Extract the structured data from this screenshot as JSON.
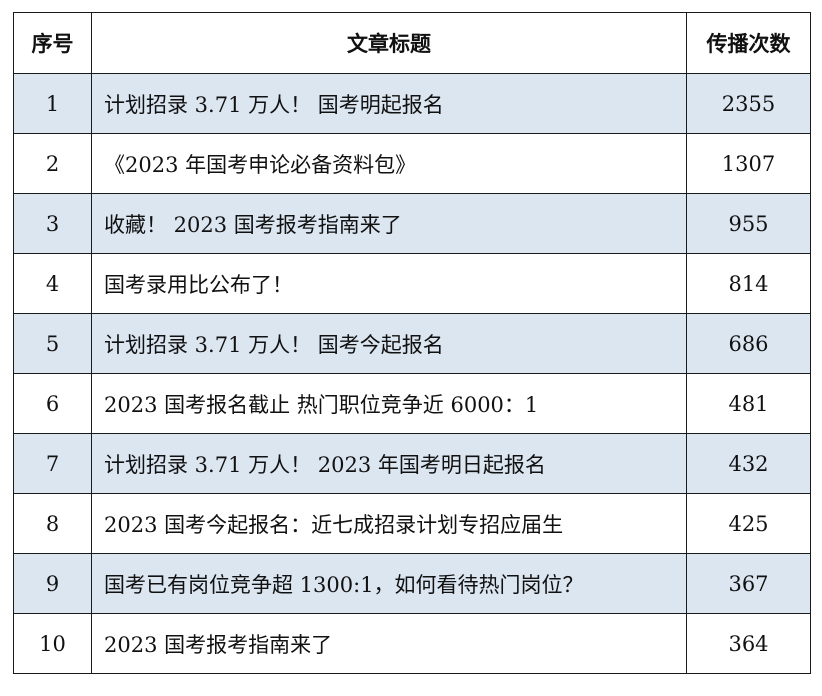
{
  "headers": {
    "index": "序号",
    "title": "文章标题",
    "count": "传播次数"
  },
  "rows": [
    {
      "index": "1",
      "title": "计划招录 3.71 万人！ 国考明起报名",
      "count": "2355"
    },
    {
      "index": "2",
      "title": "《2023 年国考申论必备资料包》",
      "count": "1307"
    },
    {
      "index": "3",
      "title": "收藏！ 2023 国考报考指南来了",
      "count": "955"
    },
    {
      "index": "4",
      "title": "国考录用比公布了！",
      "count": "814"
    },
    {
      "index": "5",
      "title": "计划招录 3.71 万人！ 国考今起报名",
      "count": "686"
    },
    {
      "index": "6",
      "title": "2023 国考报名截止 热门职位竞争近 6000：1",
      "count": "481"
    },
    {
      "index": "7",
      "title": "计划招录 3.71 万人！ 2023 年国考明日起报名",
      "count": "432"
    },
    {
      "index": "8",
      "title": "2023 国考今起报名：近七成招录计划专招应届生",
      "count": "425"
    },
    {
      "index": "9",
      "title": "国考已有岗位竞争超 1300:1，如何看待热门岗位？",
      "count": "367"
    },
    {
      "index": "10",
      "title": "2023 国考报考指南来了",
      "count": "364"
    }
  ],
  "colors": {
    "row_shade": "#dce6f1",
    "row_plain": "#ffffff",
    "border": "#1a1a1a"
  }
}
